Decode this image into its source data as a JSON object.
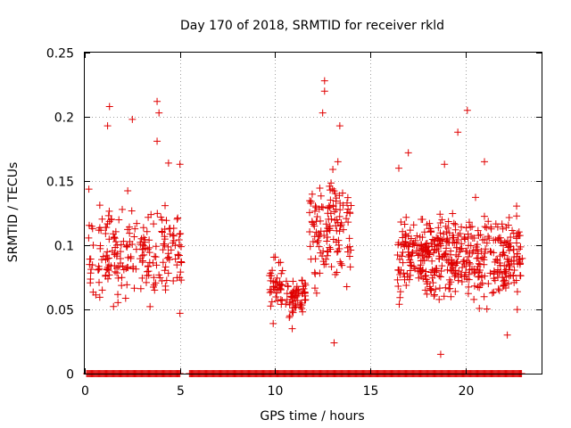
{
  "chart_data": {
    "type": "scatter",
    "title": "Day 170 of 2018, SRMTID for receiver rkld",
    "xlabel": "GPS time / hours",
    "ylabel": "SRMTID / TECUs",
    "xlim": [
      0,
      24
    ],
    "ylim": [
      0,
      0.25
    ],
    "x_ticks": [
      "0",
      "5",
      "10",
      "15",
      "20"
    ],
    "y_ticks": [
      "0",
      "0.05",
      "0.1",
      "0.15",
      "0.2",
      "0.25"
    ],
    "grid": true,
    "marker": "+",
    "color": "#e00000",
    "zero_coverage": [
      [
        0.1,
        5.0
      ],
      [
        5.5,
        23.0
      ]
    ],
    "clusters": [
      {
        "x_range": [
          0.2,
          5.1
        ],
        "y_center": 0.095,
        "y_spread": 0.06,
        "count": 220
      },
      {
        "x_range": [
          9.7,
          10.4
        ],
        "y_center": 0.07,
        "y_spread": 0.035,
        "count": 40
      },
      {
        "x_range": [
          10.5,
          11.6
        ],
        "y_center": 0.06,
        "y_spread": 0.025,
        "count": 60
      },
      {
        "x_range": [
          11.8,
          14.0
        ],
        "y_center": 0.11,
        "y_spread": 0.06,
        "count": 130
      },
      {
        "x_range": [
          16.4,
          23.0
        ],
        "y_center": 0.09,
        "y_spread": 0.055,
        "count": 480
      }
    ],
    "points": [
      [
        1.3,
        0.208
      ],
      [
        3.8,
        0.212
      ],
      [
        12.6,
        0.228
      ],
      [
        12.6,
        0.22
      ],
      [
        20.1,
        0.205
      ],
      [
        2.5,
        0.198
      ],
      [
        3.9,
        0.203
      ],
      [
        13.4,
        0.193
      ],
      [
        19.6,
        0.188
      ],
      [
        1.2,
        0.193
      ],
      [
        3.8,
        0.181
      ],
      [
        12.5,
        0.203
      ],
      [
        17.0,
        0.172
      ],
      [
        13.1,
        0.024
      ],
      [
        18.7,
        0.015
      ],
      [
        5.0,
        0.047
      ],
      [
        9.9,
        0.039
      ],
      [
        10.9,
        0.035
      ],
      [
        22.2,
        0.03
      ],
      [
        18.9,
        0.163
      ],
      [
        21.0,
        0.165
      ],
      [
        16.5,
        0.16
      ],
      [
        4.4,
        0.164
      ],
      [
        5.0,
        0.163
      ],
      [
        13.3,
        0.165
      ]
    ]
  }
}
